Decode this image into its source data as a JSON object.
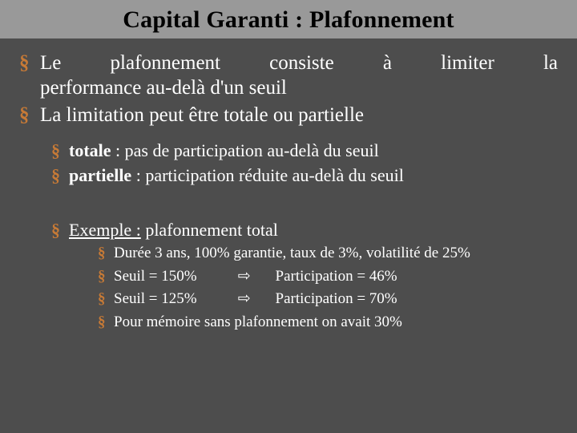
{
  "colors": {
    "background": "#4d4d4d",
    "title_bar_bg": "#999999",
    "title_text": "#000000",
    "body_text": "#ffffff",
    "bullet_color": "#c77a36"
  },
  "typography": {
    "family": "Times New Roman",
    "title_fontsize_pt": 30,
    "lvl1_fontsize_pt": 25,
    "lvl2_fontsize_pt": 22,
    "lvl3_fontsize_pt": 19
  },
  "title": "Capital Garanti : Plafonnement",
  "lvl1": {
    "item1_line1": "Le   plafonnement   consiste   à   limiter   la",
    "item1_line2": "performance au-delà d'un seuil",
    "item2": "La limitation peut être totale ou partielle"
  },
  "lvl2": {
    "totale_label": "totale",
    "totale_rest": " : pas de participation au-delà du seuil",
    "partielle_label": "partielle",
    "partielle_rest": " : participation réduite au-delà du seuil",
    "exemple_label": "Exemple :",
    "exemple_rest": " plafonnement total"
  },
  "lvl3": {
    "item1": "Durée 3 ans, 100% garantie, taux de 3%, volatilité de 25%",
    "seuil1_label": "Seuil = 150%",
    "seuil1_partic": "Participation = 46%",
    "seuil2_label": "Seuil = 125%",
    "seuil2_partic": "Participation = 70%",
    "arrow": "⇨",
    "item4": "Pour mémoire sans plafonnement on avait 30%"
  }
}
